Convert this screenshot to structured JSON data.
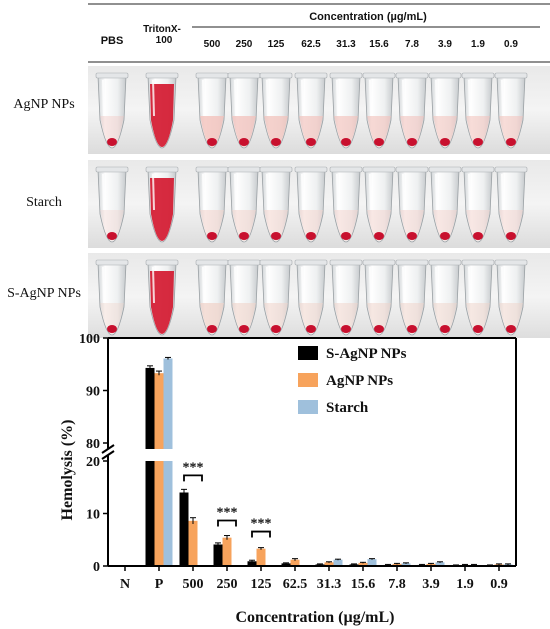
{
  "photo_panel": {
    "header": {
      "pbs": "PBS",
      "triton_line1": "TritonX-",
      "triton_line2": "100",
      "concentration_title": "Concentration (µg/mL)",
      "concentrations": [
        "500",
        "250",
        "125",
        "62.5",
        "31.3",
        "15.6",
        "7.8",
        "3.9",
        "1.9",
        "0.9"
      ]
    },
    "rows": [
      {
        "label": "AgNP NPs",
        "supernatant_color": "#f2c2bc",
        "pellet_color": "#c8102e",
        "tint": [
          0.05,
          1.0,
          0.75,
          0.7,
          0.65,
          0.55,
          0.5,
          0.45,
          0.4,
          0.35,
          0.35,
          0.35
        ]
      },
      {
        "label": "Starch",
        "supernatant_color": "#f3d3cc",
        "pellet_color": "#c8102e",
        "tint": [
          0.05,
          1.0,
          0.35,
          0.33,
          0.3,
          0.3,
          0.28,
          0.28,
          0.28,
          0.27,
          0.27,
          0.27
        ]
      },
      {
        "label": "S-AgNP NPs",
        "supernatant_color": "#efd2c8",
        "pellet_color": "#c8102e",
        "tint": [
          0.05,
          1.0,
          0.6,
          0.4,
          0.3,
          0.28,
          0.25,
          0.25,
          0.25,
          0.22,
          0.22,
          0.22
        ]
      }
    ]
  },
  "chart_data": {
    "type": "bar",
    "title": "",
    "xlabel": "Concentration (µg/mL)",
    "ylabel": "Hemolysis (%)",
    "categories": [
      "N",
      "P",
      "500",
      "250",
      "125",
      "62.5",
      "31.3",
      "15.6",
      "7.8",
      "3.9",
      "1.9",
      "0.9"
    ],
    "series": [
      {
        "name": "S-AgNP NPs",
        "color": "#000000",
        "values": [
          0.0,
          94.3,
          14.0,
          4.1,
          0.9,
          0.5,
          0.3,
          0.3,
          0.2,
          0.2,
          0.1,
          0.1
        ],
        "errors": [
          0,
          0.4,
          0.6,
          0.3,
          0.2,
          0.1,
          0.1,
          0.1,
          0.1,
          0.1,
          0.1,
          0.1
        ]
      },
      {
        "name": "AgNP NPs",
        "color": "#f7a35c",
        "values": [
          0.0,
          93.3,
          8.6,
          5.4,
          3.3,
          1.2,
          0.7,
          0.6,
          0.4,
          0.4,
          0.2,
          0.3
        ],
        "errors": [
          0,
          0.4,
          0.6,
          0.4,
          0.2,
          0.2,
          0.1,
          0.1,
          0.1,
          0.1,
          0.1,
          0.1
        ]
      },
      {
        "name": "Starch",
        "color": "#9fc0dc",
        "values": [
          0.0,
          96.1,
          0.0,
          0.0,
          0.0,
          0.0,
          1.2,
          1.3,
          0.5,
          0.7,
          0.2,
          0.3
        ],
        "errors": [
          0,
          0.2,
          0,
          0,
          0,
          0,
          0.1,
          0.1,
          0.1,
          0.1,
          0.1,
          0.1
        ]
      }
    ],
    "y_axis_break": {
      "lower_range": [
        0,
        20
      ],
      "upper_range": [
        80,
        100
      ]
    },
    "y_ticks_lower": [
      "0",
      "10",
      "20"
    ],
    "y_ticks_upper": [
      "80",
      "90",
      "100"
    ],
    "significance": [
      {
        "label": "***",
        "category": "500"
      },
      {
        "label": "***",
        "category": "250"
      },
      {
        "label": "***",
        "category": "125"
      }
    ],
    "legend_position": "top-right"
  }
}
